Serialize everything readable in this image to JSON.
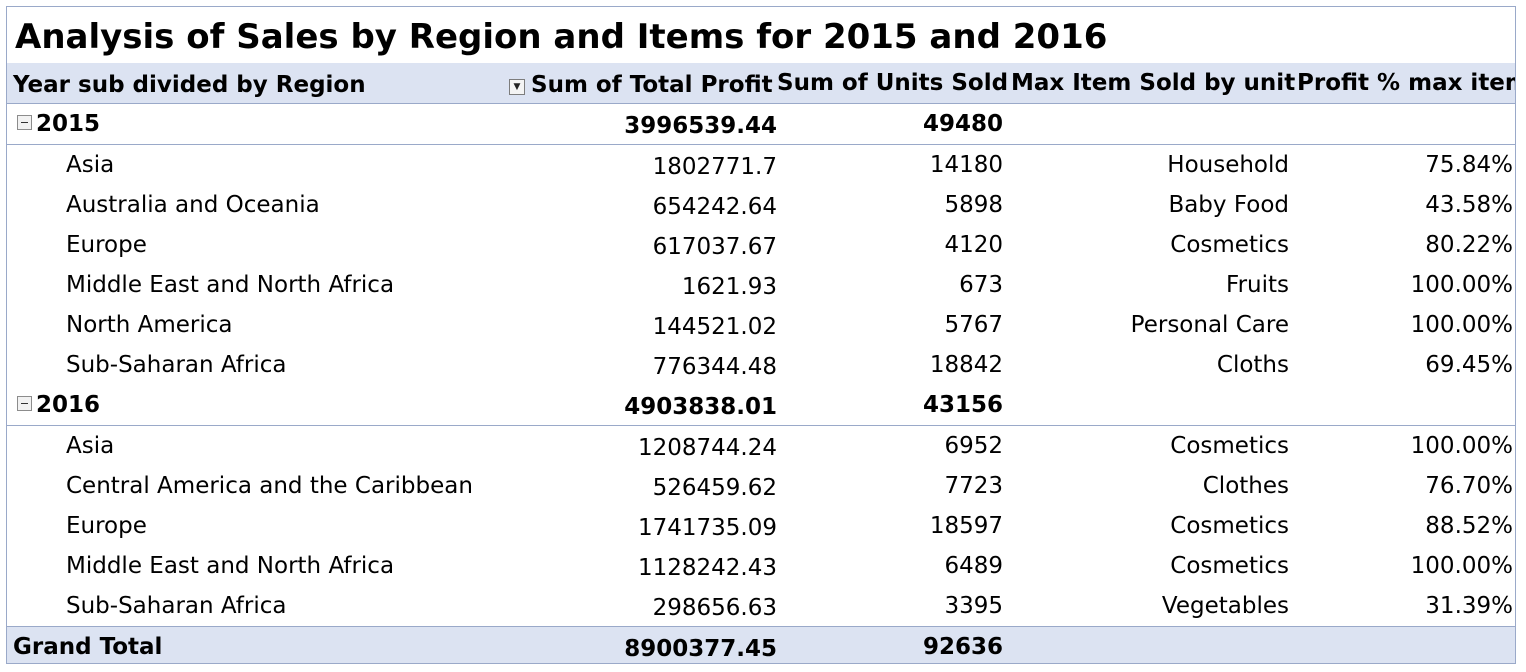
{
  "title": "Analysis of Sales by Region and Items for 2015 and 2016",
  "headers": {
    "row_label": "Year sub divided by Region",
    "profit": "Sum of Total Profit",
    "units": "Sum of Units Sold",
    "max_item": "Max Item Sold by unit",
    "profit_pct": "Profit % max item"
  },
  "icons": {
    "filter": "filter-dropdown-icon",
    "collapse": "collapse-minus-icon"
  },
  "colors": {
    "header_bg": "#dce3f2",
    "border": "#9aa9c9"
  },
  "groups": [
    {
      "year": "2015",
      "profit": "3996539.44",
      "units": "49480",
      "regions": [
        {
          "name": "Asia",
          "profit": "1802771.7",
          "units": "14180",
          "item": "Household",
          "pct": "75.84%"
        },
        {
          "name": "Australia and Oceania",
          "profit": "654242.64",
          "units": "5898",
          "item": "Baby Food",
          "pct": "43.58%"
        },
        {
          "name": "Europe",
          "profit": "617037.67",
          "units": "4120",
          "item": "Cosmetics",
          "pct": "80.22%"
        },
        {
          "name": "Middle East and North Africa",
          "profit": "1621.93",
          "units": "673",
          "item": "Fruits",
          "pct": "100.00%"
        },
        {
          "name": "North America",
          "profit": "144521.02",
          "units": "5767",
          "item": "Personal Care",
          "pct": "100.00%"
        },
        {
          "name": "Sub-Saharan Africa",
          "profit": "776344.48",
          "units": "18842",
          "item": "Cloths",
          "pct": "69.45%"
        }
      ]
    },
    {
      "year": "2016",
      "profit": "4903838.01",
      "units": "43156",
      "regions": [
        {
          "name": "Asia",
          "profit": "1208744.24",
          "units": "6952",
          "item": "Cosmetics",
          "pct": "100.00%"
        },
        {
          "name": "Central America and the Caribbean",
          "profit": "526459.62",
          "units": "7723",
          "item": "Clothes",
          "pct": "76.70%"
        },
        {
          "name": "Europe",
          "profit": "1741735.09",
          "units": "18597",
          "item": "Cosmetics",
          "pct": "88.52%"
        },
        {
          "name": "Middle East and North Africa",
          "profit": "1128242.43",
          "units": "6489",
          "item": "Cosmetics",
          "pct": "100.00%"
        },
        {
          "name": "Sub-Saharan Africa",
          "profit": "298656.63",
          "units": "3395",
          "item": "Vegetables",
          "pct": "31.39%"
        }
      ]
    }
  ],
  "grand_total": {
    "label": "Grand Total",
    "profit": "8900377.45",
    "units": "92636"
  }
}
